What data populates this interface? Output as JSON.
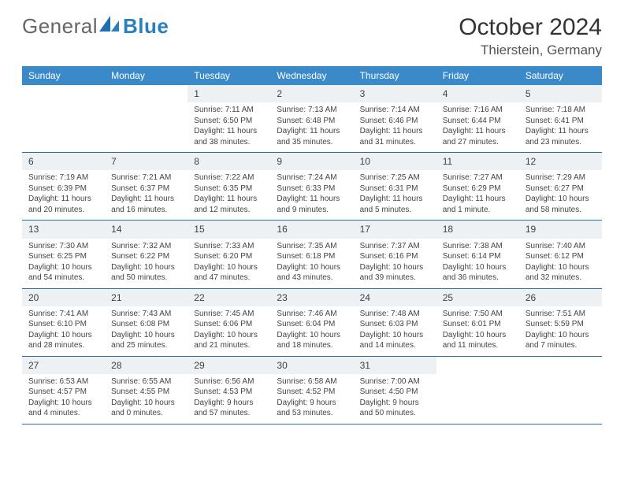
{
  "brand": {
    "part1": "General",
    "part2": "Blue"
  },
  "title": "October 2024",
  "location": "Thierstein, Germany",
  "colors": {
    "header_bg": "#3a8ac9",
    "header_text": "#ffffff",
    "row_border": "#2d6fa5",
    "daynum_bg": "#eef1f3",
    "brand_blue": "#2a7fbf"
  },
  "weekdays": [
    "Sunday",
    "Monday",
    "Tuesday",
    "Wednesday",
    "Thursday",
    "Friday",
    "Saturday"
  ],
  "weeks": [
    [
      {
        "empty": true
      },
      {
        "empty": true
      },
      {
        "num": "1",
        "sunrise": "7:11 AM",
        "sunset": "6:50 PM",
        "daylight": "11 hours and 38 minutes."
      },
      {
        "num": "2",
        "sunrise": "7:13 AM",
        "sunset": "6:48 PM",
        "daylight": "11 hours and 35 minutes."
      },
      {
        "num": "3",
        "sunrise": "7:14 AM",
        "sunset": "6:46 PM",
        "daylight": "11 hours and 31 minutes."
      },
      {
        "num": "4",
        "sunrise": "7:16 AM",
        "sunset": "6:44 PM",
        "daylight": "11 hours and 27 minutes."
      },
      {
        "num": "5",
        "sunrise": "7:18 AM",
        "sunset": "6:41 PM",
        "daylight": "11 hours and 23 minutes."
      }
    ],
    [
      {
        "num": "6",
        "sunrise": "7:19 AM",
        "sunset": "6:39 PM",
        "daylight": "11 hours and 20 minutes."
      },
      {
        "num": "7",
        "sunrise": "7:21 AM",
        "sunset": "6:37 PM",
        "daylight": "11 hours and 16 minutes."
      },
      {
        "num": "8",
        "sunrise": "7:22 AM",
        "sunset": "6:35 PM",
        "daylight": "11 hours and 12 minutes."
      },
      {
        "num": "9",
        "sunrise": "7:24 AM",
        "sunset": "6:33 PM",
        "daylight": "11 hours and 9 minutes."
      },
      {
        "num": "10",
        "sunrise": "7:25 AM",
        "sunset": "6:31 PM",
        "daylight": "11 hours and 5 minutes."
      },
      {
        "num": "11",
        "sunrise": "7:27 AM",
        "sunset": "6:29 PM",
        "daylight": "11 hours and 1 minute."
      },
      {
        "num": "12",
        "sunrise": "7:29 AM",
        "sunset": "6:27 PM",
        "daylight": "10 hours and 58 minutes."
      }
    ],
    [
      {
        "num": "13",
        "sunrise": "7:30 AM",
        "sunset": "6:25 PM",
        "daylight": "10 hours and 54 minutes."
      },
      {
        "num": "14",
        "sunrise": "7:32 AM",
        "sunset": "6:22 PM",
        "daylight": "10 hours and 50 minutes."
      },
      {
        "num": "15",
        "sunrise": "7:33 AM",
        "sunset": "6:20 PM",
        "daylight": "10 hours and 47 minutes."
      },
      {
        "num": "16",
        "sunrise": "7:35 AM",
        "sunset": "6:18 PM",
        "daylight": "10 hours and 43 minutes."
      },
      {
        "num": "17",
        "sunrise": "7:37 AM",
        "sunset": "6:16 PM",
        "daylight": "10 hours and 39 minutes."
      },
      {
        "num": "18",
        "sunrise": "7:38 AM",
        "sunset": "6:14 PM",
        "daylight": "10 hours and 36 minutes."
      },
      {
        "num": "19",
        "sunrise": "7:40 AM",
        "sunset": "6:12 PM",
        "daylight": "10 hours and 32 minutes."
      }
    ],
    [
      {
        "num": "20",
        "sunrise": "7:41 AM",
        "sunset": "6:10 PM",
        "daylight": "10 hours and 28 minutes."
      },
      {
        "num": "21",
        "sunrise": "7:43 AM",
        "sunset": "6:08 PM",
        "daylight": "10 hours and 25 minutes."
      },
      {
        "num": "22",
        "sunrise": "7:45 AM",
        "sunset": "6:06 PM",
        "daylight": "10 hours and 21 minutes."
      },
      {
        "num": "23",
        "sunrise": "7:46 AM",
        "sunset": "6:04 PM",
        "daylight": "10 hours and 18 minutes."
      },
      {
        "num": "24",
        "sunrise": "7:48 AM",
        "sunset": "6:03 PM",
        "daylight": "10 hours and 14 minutes."
      },
      {
        "num": "25",
        "sunrise": "7:50 AM",
        "sunset": "6:01 PM",
        "daylight": "10 hours and 11 minutes."
      },
      {
        "num": "26",
        "sunrise": "7:51 AM",
        "sunset": "5:59 PM",
        "daylight": "10 hours and 7 minutes."
      }
    ],
    [
      {
        "num": "27",
        "sunrise": "6:53 AM",
        "sunset": "4:57 PM",
        "daylight": "10 hours and 4 minutes."
      },
      {
        "num": "28",
        "sunrise": "6:55 AM",
        "sunset": "4:55 PM",
        "daylight": "10 hours and 0 minutes."
      },
      {
        "num": "29",
        "sunrise": "6:56 AM",
        "sunset": "4:53 PM",
        "daylight": "9 hours and 57 minutes."
      },
      {
        "num": "30",
        "sunrise": "6:58 AM",
        "sunset": "4:52 PM",
        "daylight": "9 hours and 53 minutes."
      },
      {
        "num": "31",
        "sunrise": "7:00 AM",
        "sunset": "4:50 PM",
        "daylight": "9 hours and 50 minutes."
      },
      {
        "empty": true
      },
      {
        "empty": true
      }
    ]
  ],
  "labels": {
    "sunrise_prefix": "Sunrise: ",
    "sunset_prefix": "Sunset: ",
    "daylight_prefix": "Daylight: "
  }
}
